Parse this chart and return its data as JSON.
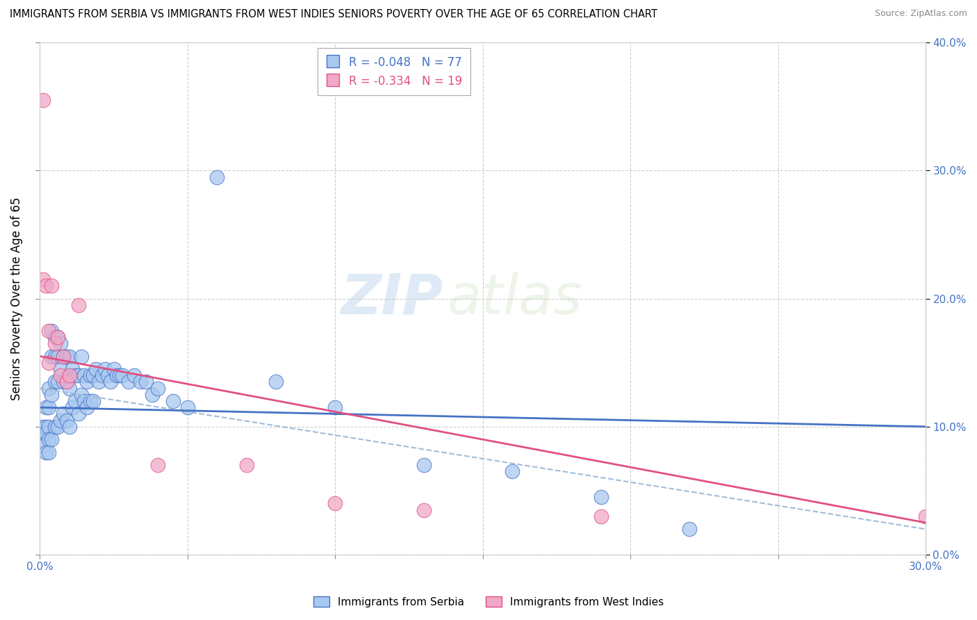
{
  "title": "IMMIGRANTS FROM SERBIA VS IMMIGRANTS FROM WEST INDIES SENIORS POVERTY OVER THE AGE OF 65 CORRELATION CHART",
  "source": "Source: ZipAtlas.com",
  "ylabel": "Seniors Poverty Over the Age of 65",
  "watermark_zip": "ZIP",
  "watermark_atlas": "atlas",
  "R_serbia": -0.048,
  "N_serbia": 77,
  "R_west_indies": -0.334,
  "N_west_indies": 19,
  "color_serbia": "#a8c8f0",
  "color_west_indies": "#f0a8c8",
  "color_serbia_line": "#4472c4",
  "color_west_indies_line": "#e05080",
  "color_dashed": "#a0bcd8",
  "xlim": [
    0.0,
    0.3
  ],
  "ylim": [
    0.0,
    0.4
  ],
  "serbia_x": [
    0.001,
    0.001,
    0.001,
    0.002,
    0.002,
    0.002,
    0.002,
    0.003,
    0.003,
    0.003,
    0.003,
    0.003,
    0.004,
    0.004,
    0.004,
    0.004,
    0.005,
    0.005,
    0.005,
    0.005,
    0.006,
    0.006,
    0.006,
    0.006,
    0.007,
    0.007,
    0.007,
    0.008,
    0.008,
    0.008,
    0.009,
    0.009,
    0.009,
    0.01,
    0.01,
    0.01,
    0.011,
    0.011,
    0.012,
    0.012,
    0.013,
    0.013,
    0.014,
    0.014,
    0.015,
    0.015,
    0.016,
    0.016,
    0.017,
    0.017,
    0.018,
    0.018,
    0.019,
    0.02,
    0.021,
    0.022,
    0.023,
    0.024,
    0.025,
    0.026,
    0.027,
    0.028,
    0.03,
    0.032,
    0.034,
    0.036,
    0.038,
    0.04,
    0.045,
    0.05,
    0.06,
    0.08,
    0.1,
    0.13,
    0.16,
    0.19,
    0.22
  ],
  "serbia_y": [
    0.1,
    0.095,
    0.085,
    0.115,
    0.1,
    0.095,
    0.08,
    0.13,
    0.115,
    0.1,
    0.09,
    0.08,
    0.175,
    0.155,
    0.125,
    0.09,
    0.17,
    0.155,
    0.135,
    0.1,
    0.17,
    0.155,
    0.135,
    0.1,
    0.165,
    0.145,
    0.105,
    0.155,
    0.135,
    0.11,
    0.155,
    0.135,
    0.105,
    0.155,
    0.13,
    0.1,
    0.145,
    0.115,
    0.14,
    0.12,
    0.14,
    0.11,
    0.155,
    0.125,
    0.14,
    0.12,
    0.135,
    0.115,
    0.14,
    0.12,
    0.14,
    0.12,
    0.145,
    0.135,
    0.14,
    0.145,
    0.14,
    0.135,
    0.145,
    0.14,
    0.14,
    0.14,
    0.135,
    0.14,
    0.135,
    0.135,
    0.125,
    0.13,
    0.12,
    0.115,
    0.295,
    0.135,
    0.115,
    0.07,
    0.065,
    0.045,
    0.02
  ],
  "west_indies_x": [
    0.001,
    0.001,
    0.002,
    0.003,
    0.003,
    0.004,
    0.005,
    0.006,
    0.007,
    0.008,
    0.009,
    0.01,
    0.013,
    0.3,
    0.19,
    0.13,
    0.1,
    0.07,
    0.04
  ],
  "west_indies_y": [
    0.355,
    0.215,
    0.21,
    0.175,
    0.15,
    0.21,
    0.165,
    0.17,
    0.14,
    0.155,
    0.135,
    0.14,
    0.195,
    0.03,
    0.03,
    0.035,
    0.04,
    0.07,
    0.07
  ],
  "serbia_line_x0": 0.0,
  "serbia_line_x1": 0.3,
  "serbia_line_y0": 0.115,
  "serbia_line_y1": 0.1,
  "west_line_x0": 0.0,
  "west_line_x1": 0.3,
  "west_line_y0": 0.155,
  "west_line_y1": 0.025,
  "dashed_line_x0": 0.0,
  "dashed_line_x1": 0.3,
  "dashed_line_y0": 0.13,
  "dashed_line_y1": 0.02
}
